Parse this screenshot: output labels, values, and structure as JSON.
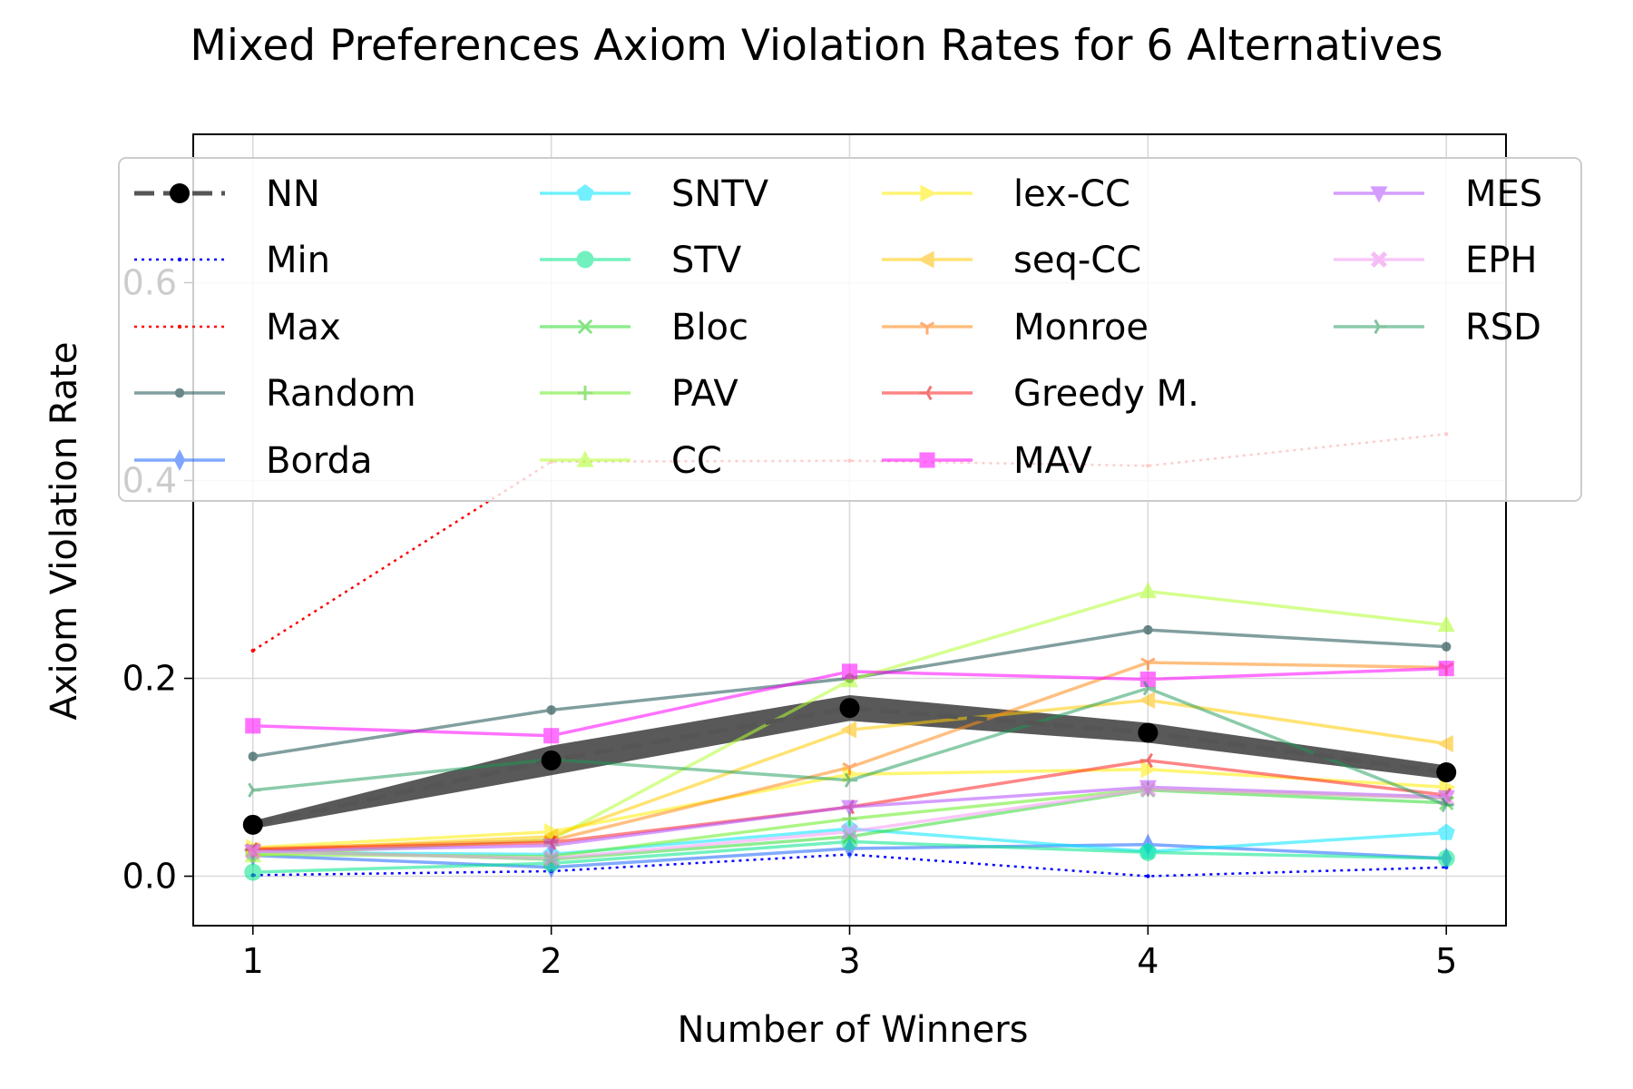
{
  "chart_data": {
    "type": "line",
    "title": "Mixed Preferences Axiom Violation Rates for 6 Alternatives",
    "xlabel": "Number of Winners",
    "ylabel": "Axiom Violation Rate",
    "x": [
      1,
      2,
      3,
      4,
      5
    ],
    "x_ticks": [
      "1",
      "2",
      "3",
      "4",
      "5"
    ],
    "y_ticks": [
      "0.0",
      "0.2",
      "0.4",
      "0.6"
    ],
    "xlim": [
      0.8,
      5.2
    ],
    "ylim": [
      -0.05,
      0.75
    ],
    "grid": true,
    "legend_position": "top, 4 columns",
    "series": [
      {
        "name": "NN",
        "values": [
          0.052,
          0.117,
          0.17,
          0.145,
          0.105
        ],
        "band": [
          [
            0.048,
            0.056
          ],
          [
            0.102,
            0.132
          ],
          [
            0.157,
            0.183
          ],
          [
            0.135,
            0.155
          ],
          [
            0.098,
            0.112
          ]
        ],
        "color": "#555555",
        "band_color": "#222222",
        "marker": "circle",
        "marker_color": "#000000",
        "dash": "dashed",
        "width": 5,
        "alpha": 1
      },
      {
        "name": "Min",
        "values": [
          0.001,
          0.005,
          0.022,
          0.0,
          0.009
        ],
        "color": "#0000ff",
        "marker": "point",
        "dash": "dotted",
        "width": 2.5,
        "alpha": 1
      },
      {
        "name": "Max",
        "values": [
          0.228,
          0.419,
          0.42,
          0.415,
          0.447
        ],
        "color": "#ff0000",
        "marker": "point",
        "dash": "dotted",
        "width": 2.5,
        "alpha": 1
      },
      {
        "name": "Random",
        "values": [
          0.121,
          0.168,
          0.2,
          0.249,
          0.232
        ],
        "color": "#2f5f5f",
        "marker": "dot",
        "marker_color": "#0a3a3a",
        "dash": "solid",
        "width": 3.5,
        "alpha": 0.6
      },
      {
        "name": "Borda",
        "values": [
          0.021,
          0.009,
          0.028,
          0.032,
          0.018
        ],
        "color": "#1a66ff",
        "marker": "thin_diamond",
        "marker_color": "#1a5cff",
        "dash": "solid",
        "width": 3.5,
        "alpha": 0.55
      },
      {
        "name": "SNTV",
        "values": [
          0.024,
          0.022,
          0.048,
          0.025,
          0.044
        ],
        "color": "#00e5ff",
        "marker": "pentagon",
        "marker_color": "#00e5ff",
        "dash": "solid",
        "width": 3.5,
        "alpha": 0.55
      },
      {
        "name": "STV",
        "values": [
          0.004,
          0.013,
          0.035,
          0.024,
          0.018
        ],
        "color": "#00e68a",
        "marker": "circle",
        "marker_color": "#00e68a",
        "dash": "solid",
        "width": 3.5,
        "alpha": 0.55
      },
      {
        "name": "Bloc",
        "values": [
          0.026,
          0.017,
          0.04,
          0.087,
          0.074
        ],
        "color": "#33dd33",
        "marker": "x",
        "marker_color": "#22cc22",
        "dash": "solid",
        "width": 3.5,
        "alpha": 0.55
      },
      {
        "name": "PAV",
        "values": [
          0.022,
          0.02,
          0.058,
          0.088,
          0.079
        ],
        "color": "#66ee22",
        "marker": "plus",
        "marker_color": "#44cc11",
        "dash": "solid",
        "width": 3.5,
        "alpha": 0.55
      },
      {
        "name": "CC",
        "values": [
          0.021,
          0.037,
          0.198,
          0.288,
          0.254
        ],
        "color": "#b3ff33",
        "marker": "triangle_up",
        "marker_color": "#aaff22",
        "dash": "solid",
        "width": 3.5,
        "alpha": 0.55
      },
      {
        "name": "lex-CC",
        "values": [
          0.029,
          0.045,
          0.103,
          0.108,
          0.09
        ],
        "color": "#ffee00",
        "marker": "triangle_right",
        "marker_color": "#ffee00",
        "dash": "solid",
        "width": 3.5,
        "alpha": 0.55
      },
      {
        "name": "seq-CC",
        "values": [
          0.026,
          0.04,
          0.148,
          0.178,
          0.134
        ],
        "color": "#ffcc00",
        "marker": "triangle_left",
        "marker_color": "#ffbb00",
        "dash": "solid",
        "width": 3.5,
        "alpha": 0.55
      },
      {
        "name": "Monroe",
        "values": [
          0.028,
          0.036,
          0.11,
          0.216,
          0.211
        ],
        "color": "#ff8c1a",
        "marker": "tri_down",
        "marker_color": "#ff6a00",
        "dash": "solid",
        "width": 3.5,
        "alpha": 0.55
      },
      {
        "name": "Greedy M.",
        "values": [
          0.027,
          0.034,
          0.07,
          0.117,
          0.082
        ],
        "color": "#ff2222",
        "marker": "tri_left",
        "marker_color": "#ee0000",
        "dash": "solid",
        "width": 3.5,
        "alpha": 0.55
      },
      {
        "name": "MAV",
        "values": [
          0.152,
          0.142,
          0.207,
          0.199,
          0.21
        ],
        "color": "#ff00ff",
        "marker": "square",
        "marker_color": "#ff00ff",
        "dash": "solid",
        "width": 3.5,
        "alpha": 0.55
      },
      {
        "name": "MES",
        "values": [
          0.025,
          0.031,
          0.07,
          0.09,
          0.08
        ],
        "color": "#b34dff",
        "marker": "triangle_down",
        "marker_color": "#b34dff",
        "dash": "solid",
        "width": 3.5,
        "alpha": 0.55
      },
      {
        "name": "EPH",
        "values": [
          0.025,
          0.018,
          0.045,
          0.088,
          0.079
        ],
        "color": "#f5a3f5",
        "marker": "x_filled",
        "marker_color": "#f090f0",
        "dash": "solid",
        "width": 3.5,
        "alpha": 0.6
      },
      {
        "name": "RSD",
        "values": [
          0.087,
          0.118,
          0.097,
          0.19,
          0.072
        ],
        "color": "#1a9955",
        "marker": "tri_right",
        "marker_color": "#0a8844",
        "dash": "solid",
        "width": 3.5,
        "alpha": 0.5
      }
    ]
  }
}
